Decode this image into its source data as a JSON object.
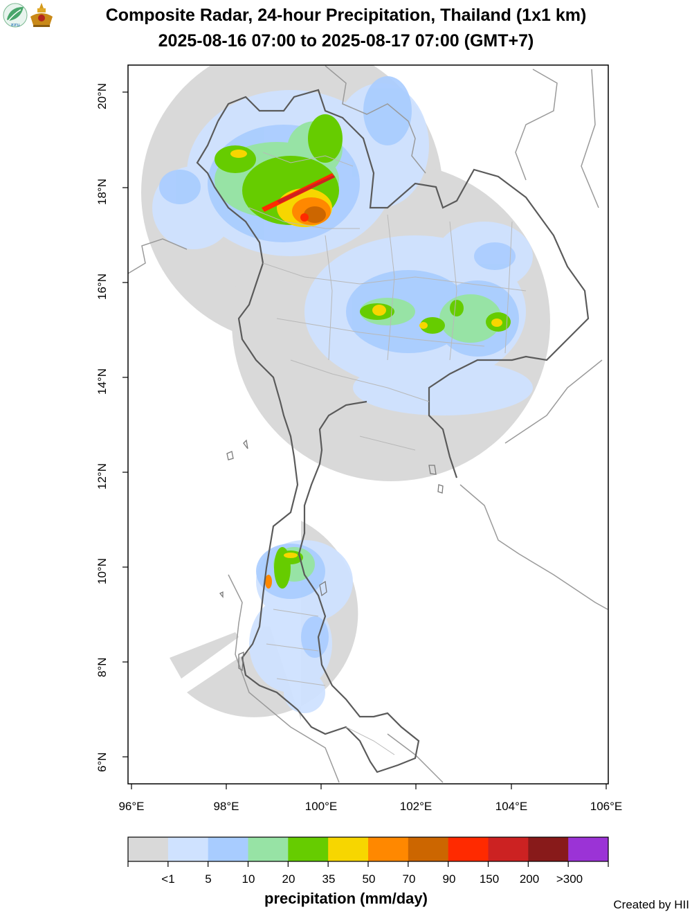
{
  "header": {
    "title_line1": "Composite Radar, 24-hour Precipitation, Thailand (1x1 km)",
    "title_line2": "2025-08-16 07:00 to 2025-08-17 07:00 (GMT+7)",
    "logos": [
      "leaf-agency-icon",
      "royal-emblem-icon"
    ]
  },
  "map": {
    "lat_ticks": [
      "20°N",
      "18°N",
      "16°N",
      "14°N",
      "12°N",
      "10°N",
      "8°N",
      "6°N"
    ],
    "lon_ticks": [
      "96°E",
      "98°E",
      "100°E",
      "102°E",
      "104°E",
      "106°E"
    ],
    "extent": {
      "lon_min": 95.9,
      "lon_max": 106.05,
      "lat_min": 5.45,
      "lat_max": 20.6
    },
    "radar_coverage_color": "#d9d9d9"
  },
  "legend": {
    "title": "precipitation (mm/day)",
    "labels": [
      "<1",
      "5",
      "10",
      "20",
      "35",
      "50",
      "70",
      "90",
      "150",
      "200",
      ">300"
    ],
    "colors": [
      "#d9d9d9",
      "#cfe2ff",
      "#a8ccff",
      "#97e3a5",
      "#66cc00",
      "#f7d600",
      "#ff8800",
      "#cc6600",
      "#ff2a00",
      "#cc2222",
      "#881a1a",
      "#9b33d6"
    ]
  },
  "footer": {
    "credit": "Created by HII"
  }
}
